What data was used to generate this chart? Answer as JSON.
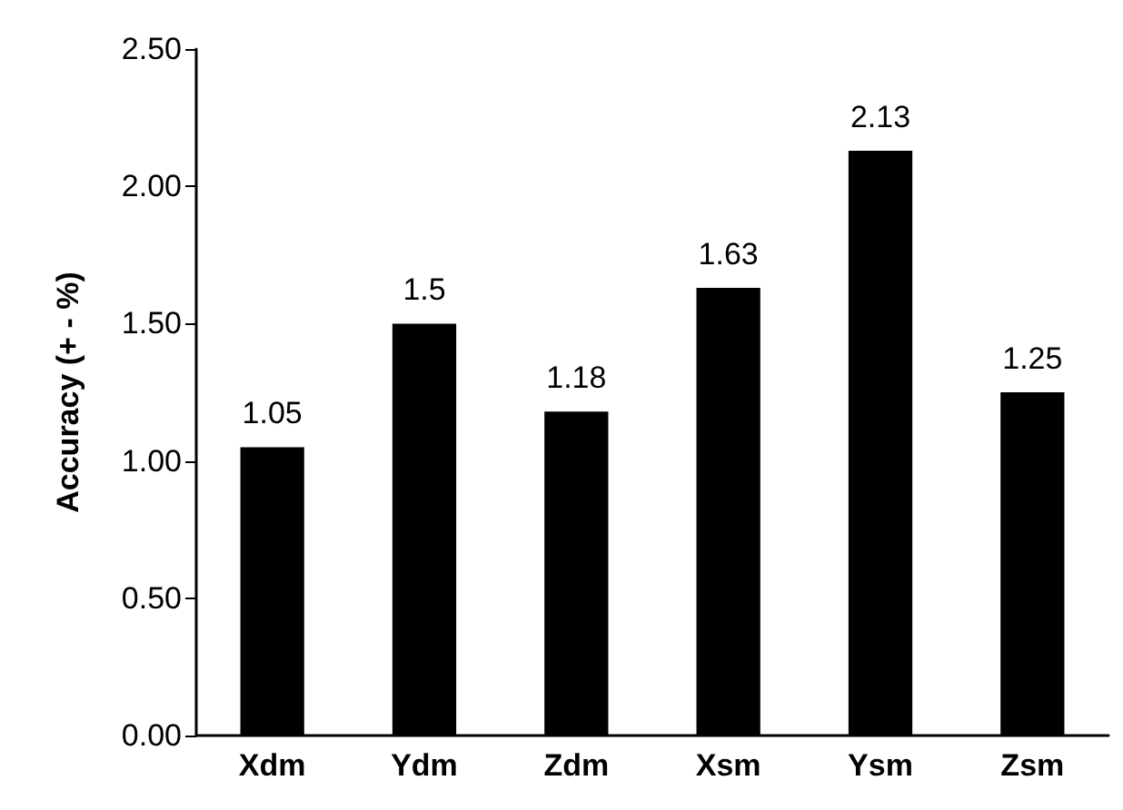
{
  "chart_data": {
    "type": "bar",
    "ylabel": "Accuracy (+ - %)",
    "categories": [
      "Xdm",
      "Ydm",
      "Zdm",
      "Xsm",
      "Ysm",
      "Zsm"
    ],
    "values": [
      1.05,
      1.5,
      1.18,
      1.63,
      2.13,
      1.25
    ],
    "color": "#000000",
    "ylim": [
      0,
      2.5
    ],
    "yticks": [
      {
        "value": 0,
        "label": "0.00"
      },
      {
        "value": 0.5,
        "label": "0.50"
      },
      {
        "value": 1,
        "label": "1.00"
      },
      {
        "value": 1.5,
        "label": "1.50"
      },
      {
        "value": 2,
        "label": "2.00"
      },
      {
        "value": 2.5,
        "label": "2.50"
      }
    ],
    "data_labels": true,
    "grid": false
  }
}
